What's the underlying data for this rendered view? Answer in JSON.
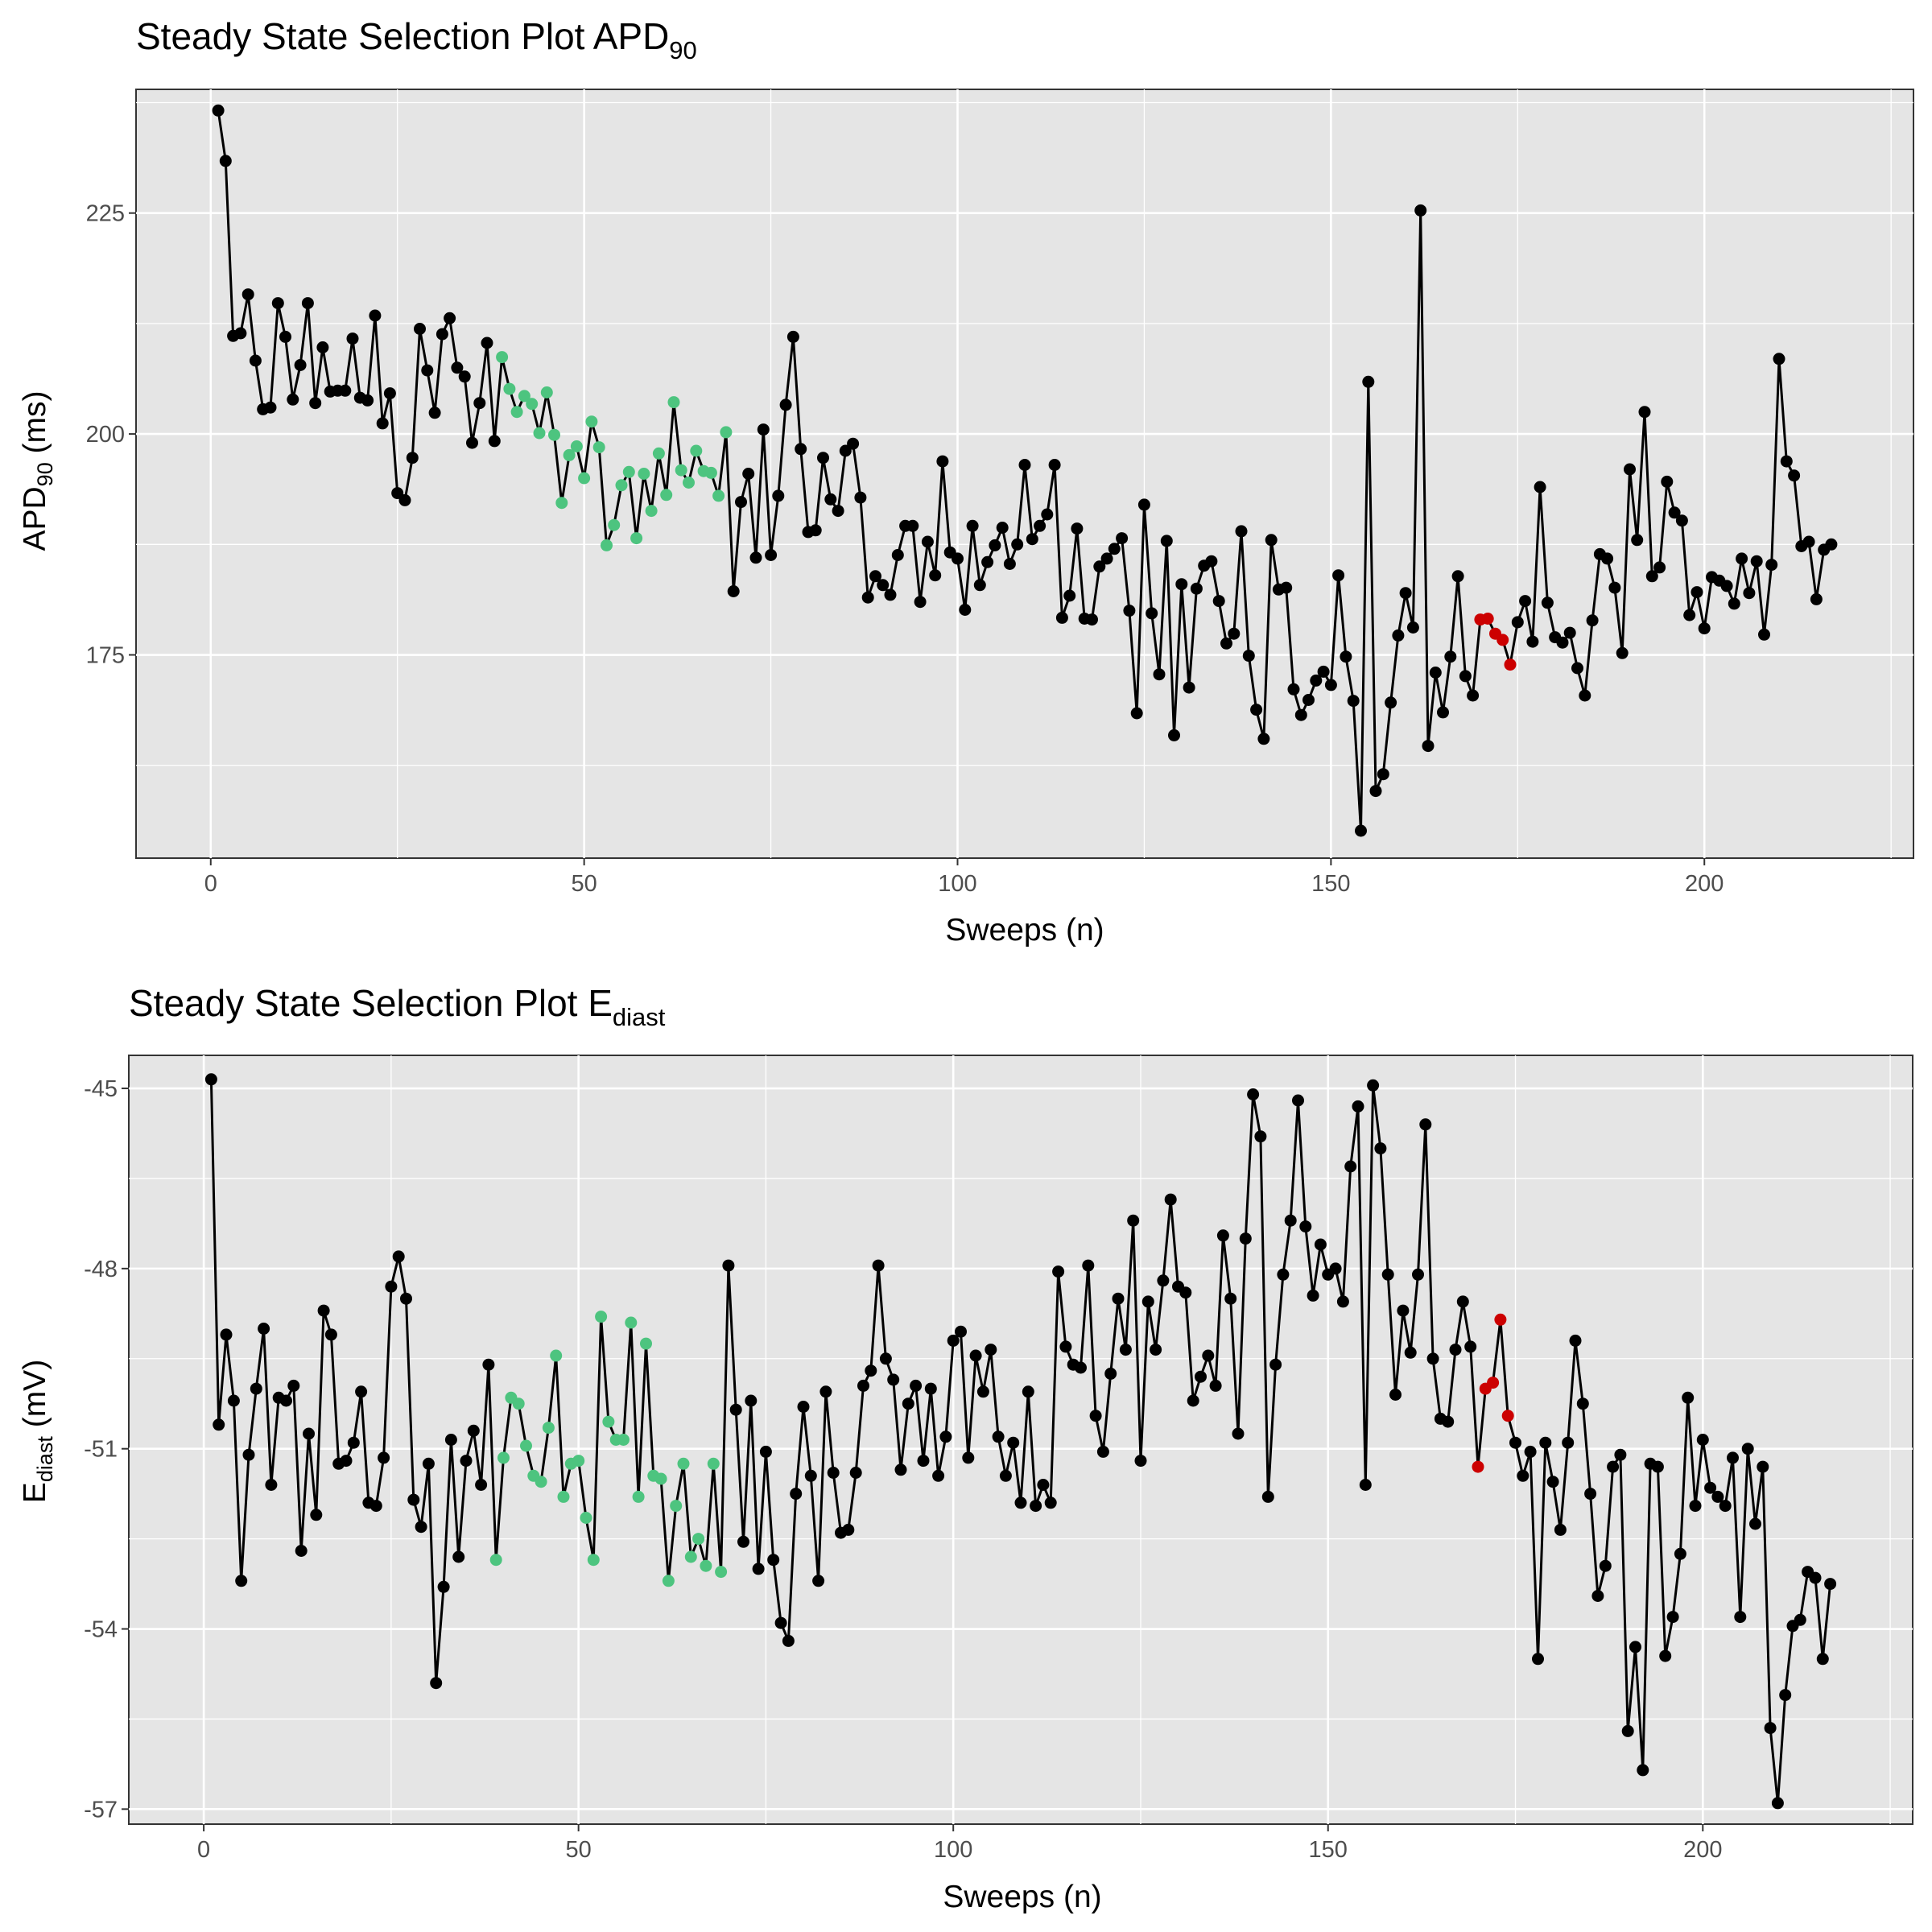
{
  "colors": {
    "normal": "#000000",
    "initial_selection": "#4dc47f",
    "steady_state": "#cc0000",
    "panel_background": "#e5e5e5"
  },
  "chart_data": [
    {
      "type": "line",
      "title": "Steady State Selection Plot APD",
      "title_subscript": "90",
      "xlabel": "Sweeps (n)",
      "ylabel": "APD",
      "ylabel_subscript": "90",
      "ylabel_suffix": " (ms)",
      "xlim": [
        -10,
        228
      ],
      "ylim": [
        152,
        239
      ],
      "x_ticks": [
        0,
        50,
        100,
        150,
        200
      ],
      "x_tick_labels": [
        "0",
        "50",
        "100",
        "150",
        "200"
      ],
      "y_ticks": [
        175,
        200,
        225
      ],
      "y_tick_labels": [
        "175",
        "200",
        "225"
      ],
      "grid": true,
      "highlight_ranges": {
        "green": [
          39,
          69
        ],
        "red": [
          170,
          174
        ]
      },
      "x_start": 1,
      "values": [
        236.6,
        230.9,
        211.1,
        211.4,
        215.8,
        208.3,
        202.8,
        203.0,
        214.8,
        211.0,
        203.9,
        207.8,
        214.8,
        203.5,
        209.8,
        204.8,
        204.9,
        204.9,
        210.8,
        204.1,
        203.8,
        213.4,
        201.2,
        204.6,
        193.3,
        192.5,
        197.3,
        211.9,
        207.2,
        202.4,
        211.3,
        213.1,
        207.5,
        206.5,
        199.0,
        203.5,
        210.3,
        199.2,
        208.7,
        205.1,
        202.5,
        204.3,
        203.4,
        200.1,
        204.7,
        199.9,
        192.2,
        197.6,
        198.6,
        195.0,
        201.4,
        198.5,
        187.4,
        189.7,
        194.2,
        195.7,
        188.2,
        195.5,
        191.3,
        197.8,
        193.1,
        203.6,
        195.9,
        194.5,
        198.1,
        195.8,
        195.6,
        193.0,
        200.2,
        182.2,
        192.3,
        195.5,
        186.0,
        200.5,
        186.3,
        193.0,
        203.3,
        211.0,
        198.3,
        188.9,
        189.1,
        197.3,
        192.6,
        191.3,
        198.1,
        198.9,
        192.8,
        181.5,
        183.9,
        182.9,
        181.8,
        186.3,
        189.6,
        189.6,
        181.0,
        187.8,
        184.0,
        196.9,
        186.6,
        185.9,
        180.1,
        189.6,
        182.9,
        185.5,
        187.4,
        189.4,
        185.3,
        187.5,
        196.5,
        188.1,
        189.6,
        190.9,
        196.5,
        179.2,
        181.7,
        189.3,
        179.1,
        179.0,
        185.0,
        185.9,
        187.0,
        188.2,
        180.0,
        168.4,
        192.0,
        179.7,
        172.8,
        187.9,
        165.9,
        183.0,
        171.3,
        182.5,
        185.1,
        185.6,
        181.1,
        176.3,
        177.4,
        189.0,
        174.9,
        168.8,
        165.5,
        188.0,
        182.4,
        182.6,
        171.1,
        168.2,
        169.9,
        172.1,
        173.1,
        171.6,
        184.0,
        174.8,
        169.8,
        155.1,
        205.9,
        159.6,
        161.5,
        169.6,
        177.2,
        182.0,
        178.1,
        225.3,
        164.7,
        173.0,
        168.5,
        174.8,
        183.9,
        172.6,
        170.4,
        179.0,
        179.1,
        177.4,
        176.7,
        173.9,
        178.7,
        181.1,
        176.5,
        194.0,
        180.9,
        177.0,
        176.4,
        177.5,
        173.5,
        170.4,
        178.9,
        186.4,
        185.9,
        182.6,
        175.2,
        196.0,
        188.0,
        202.5,
        183.9,
        184.9,
        194.6,
        191.1,
        190.2,
        179.5,
        182.1,
        178.0,
        183.8,
        183.4,
        182.8,
        180.8,
        185.9,
        182.0,
        185.6,
        177.3,
        185.2,
        208.5,
        196.9,
        195.3,
        187.3,
        187.8,
        181.3,
        186.9,
        187.5
      ]
    },
    {
      "type": "line",
      "title": "Steady State Selection Plot E",
      "title_subscript": "diast",
      "xlabel": "Sweeps (n)",
      "ylabel": "E",
      "ylabel_subscript": "diast",
      "ylabel_suffix": " (mV)",
      "xlim": [
        -10,
        228
      ],
      "ylim": [
        -57.25,
        -44.45
      ],
      "x_ticks": [
        0,
        50,
        100,
        150,
        200
      ],
      "x_tick_labels": [
        "0",
        "50",
        "100",
        "150",
        "200"
      ],
      "y_ticks": [
        -57,
        -54,
        -51,
        -48,
        -45
      ],
      "y_tick_labels": [
        "-57",
        "-54",
        "-51",
        "-48",
        "-45"
      ],
      "grid": true,
      "highlight_ranges": {
        "green": [
          39,
          69
        ],
        "red": [
          170,
          174
        ]
      },
      "x_start": 1,
      "values": [
        -44.85,
        -50.6,
        -49.1,
        -50.2,
        -53.2,
        -51.1,
        -50.0,
        -49.0,
        -51.6,
        -50.15,
        -50.2,
        -49.95,
        -52.7,
        -50.75,
        -52.1,
        -48.7,
        -49.1,
        -51.25,
        -51.2,
        -50.9,
        -50.05,
        -51.9,
        -51.95,
        -51.15,
        -48.3,
        -47.8,
        -48.5,
        -51.85,
        -52.3,
        -51.25,
        -54.9,
        -53.3,
        -50.85,
        -52.8,
        -51.2,
        -50.7,
        -51.6,
        -49.6,
        -52.85,
        -51.15,
        -50.15,
        -50.25,
        -50.95,
        -51.45,
        -51.55,
        -50.65,
        -49.45,
        -51.8,
        -51.25,
        -51.2,
        -52.15,
        -52.85,
        -48.8,
        -50.55,
        -50.85,
        -50.85,
        -48.9,
        -51.8,
        -49.25,
        -51.45,
        -51.5,
        -53.2,
        -51.95,
        -51.25,
        -52.8,
        -52.5,
        -52.95,
        -51.25,
        -53.05,
        -47.95,
        -50.35,
        -52.55,
        -50.2,
        -53.0,
        -51.05,
        -52.85,
        -53.9,
        -54.2,
        -51.75,
        -50.3,
        -51.45,
        -53.2,
        -50.05,
        -51.4,
        -52.4,
        -52.35,
        -51.4,
        -49.95,
        -49.7,
        -47.95,
        -49.5,
        -49.85,
        -51.35,
        -50.25,
        -49.95,
        -51.2,
        -50.0,
        -51.45,
        -50.8,
        -49.2,
        -49.05,
        -51.15,
        -49.45,
        -50.05,
        -49.35,
        -50.8,
        -51.45,
        -50.9,
        -51.9,
        -50.05,
        -51.95,
        -51.6,
        -51.9,
        -48.05,
        -49.3,
        -49.6,
        -49.65,
        -47.95,
        -50.45,
        -51.05,
        -49.75,
        -48.5,
        -49.35,
        -47.2,
        -51.2,
        -48.55,
        -49.35,
        -48.2,
        -46.85,
        -48.3,
        -48.4,
        -50.2,
        -49.8,
        -49.45,
        -49.95,
        -47.45,
        -48.5,
        -50.75,
        -47.5,
        -45.1,
        -45.8,
        -51.8,
        -49.6,
        -48.1,
        -47.2,
        -45.2,
        -47.3,
        -48.45,
        -47.6,
        -48.1,
        -48.0,
        -48.55,
        -46.3,
        -45.3,
        -51.6,
        -44.95,
        -46.0,
        -48.1,
        -50.1,
        -48.7,
        -49.4,
        -48.1,
        -45.6,
        -49.5,
        -50.5,
        -50.55,
        -49.35,
        -48.55,
        -49.3,
        -51.3,
        -50.0,
        -49.9,
        -48.85,
        -50.45,
        -50.9,
        -51.45,
        -51.05,
        -54.5,
        -50.9,
        -51.55,
        -52.35,
        -50.9,
        -49.2,
        -50.25,
        -51.75,
        -53.45,
        -52.95,
        -51.3,
        -51.1,
        -55.7,
        -54.3,
        -56.35,
        -51.25,
        -51.3,
        -54.45,
        -53.8,
        -52.75,
        -50.15,
        -51.95,
        -50.85,
        -51.65,
        -51.8,
        -51.95,
        -51.15,
        -53.8,
        -51.0,
        -52.25,
        -51.3,
        -55.65,
        -56.9,
        -55.1,
        -53.95,
        -53.85,
        -53.05,
        -53.15,
        -54.5,
        -53.25
      ]
    }
  ]
}
